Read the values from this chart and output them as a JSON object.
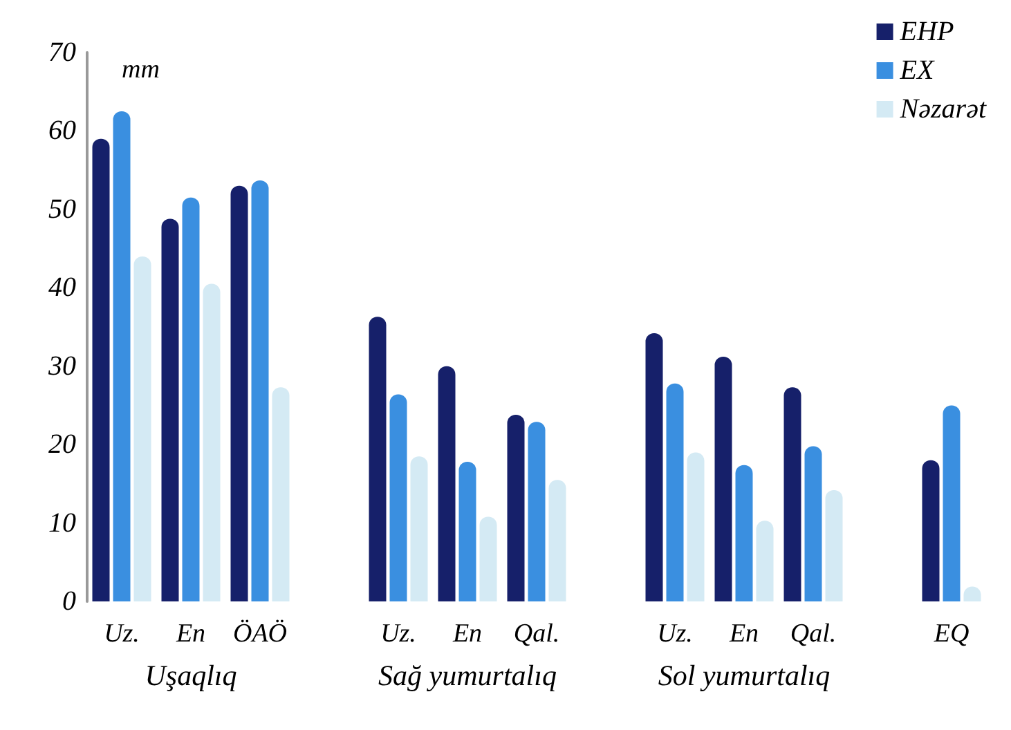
{
  "chart_data": {
    "type": "bar",
    "ylabel": "mm",
    "categories": [
      "Uz.",
      "En",
      "ÖAÖ",
      null,
      "Uz.",
      "En",
      "Qal.",
      null,
      "Uz.",
      "En",
      "Qal.",
      null,
      "EQ"
    ],
    "series": [
      {
        "name": "EHP",
        "color": "#16206a",
        "values": [
          59,
          48.8,
          53,
          null,
          36.3,
          30,
          23.8,
          null,
          34.2,
          31.2,
          27.3,
          null,
          18
        ]
      },
      {
        "name": "EX",
        "color": "#3a8fe0",
        "values": [
          62.5,
          51.5,
          53.7,
          null,
          26.4,
          17.8,
          22.9,
          null,
          27.8,
          17.4,
          19.8,
          null,
          25
        ]
      },
      {
        "name": "Nəzarət",
        "color": "#d4eaf4",
        "values": [
          44,
          40.5,
          27.3,
          null,
          18.5,
          10.8,
          15.5,
          null,
          19,
          10.3,
          14.2,
          null,
          1.9
        ]
      }
    ],
    "annotations": [
      "Uşaqlıq",
      "Sağ yumurtalıq",
      "Sol yumurtalıq"
    ],
    "ylim": [
      0,
      70
    ],
    "yticks": [
      0,
      10,
      20,
      30,
      40,
      50,
      60,
      70
    ],
    "grid": false,
    "legend": "top right"
  }
}
